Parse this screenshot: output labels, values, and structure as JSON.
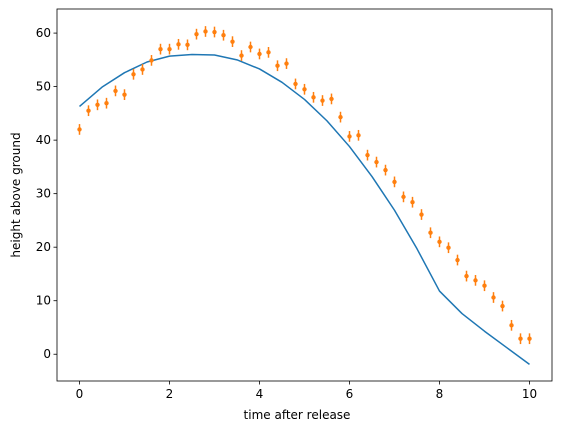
{
  "chart_data": {
    "type": "scatter",
    "title": "",
    "xlabel": "time after release",
    "ylabel": "height above ground",
    "xlim": [
      -0.5,
      10.5
    ],
    "ylim": [
      -5,
      64.5
    ],
    "xticks": [
      0,
      2,
      4,
      6,
      8,
      10
    ],
    "xtick_labels": [
      "0",
      "2",
      "4",
      "6",
      "8",
      "10"
    ],
    "yticks": [
      0,
      10,
      20,
      30,
      40,
      50,
      60
    ],
    "ytick_labels": [
      "0",
      "10",
      "20",
      "30",
      "40",
      "50",
      "60"
    ],
    "grid": false,
    "legend": "none",
    "series": [
      {
        "kind": "line",
        "color": "#1f77b4",
        "x": [
          0,
          0.5,
          1,
          1.5,
          2,
          2.5,
          3,
          3.5,
          4,
          4.5,
          5,
          5.5,
          6,
          6.5,
          7,
          7.5,
          8,
          8.5,
          9,
          9.5,
          10
        ],
        "y": [
          46.3,
          49.9,
          52.6,
          54.6,
          55.7,
          56.0,
          55.9,
          55.0,
          53.3,
          50.8,
          47.6,
          43.6,
          38.8,
          33.2,
          26.9,
          19.7,
          11.8,
          7.6,
          4.3,
          1.2,
          -1.9
        ]
      },
      {
        "kind": "errorbar",
        "color": "#ff7f0e",
        "x": [
          0,
          0.2,
          0.4,
          0.6,
          0.8,
          1.0,
          1.2,
          1.4,
          1.6,
          1.8,
          2.0,
          2.2,
          2.4,
          2.6,
          2.8,
          3.0,
          3.2,
          3.4,
          3.6,
          3.8,
          4.0,
          4.2,
          4.4,
          4.6,
          4.8,
          5.0,
          5.2,
          5.4,
          5.6,
          5.8,
          6.0,
          6.2,
          6.4,
          6.6,
          6.8,
          7.0,
          7.2,
          7.4,
          7.6,
          7.8,
          8.0,
          8.2,
          8.4,
          8.6,
          8.8,
          9.0,
          9.2,
          9.4,
          9.6,
          9.8,
          10.0
        ],
        "y": [
          42.0,
          45.5,
          46.6,
          46.9,
          49.2,
          48.5,
          52.3,
          53.2,
          54.9,
          57.0,
          57.0,
          57.9,
          57.8,
          59.8,
          60.3,
          60.2,
          59.6,
          58.4,
          55.8,
          57.4,
          56.1,
          56.4,
          53.9,
          54.3,
          50.5,
          49.5,
          48.0,
          47.4,
          47.7,
          44.3,
          40.7,
          40.9,
          37.2,
          35.9,
          34.4,
          32.2,
          29.4,
          28.4,
          26.1,
          22.7,
          21.0,
          19.9,
          17.6,
          14.6,
          13.8,
          12.8,
          10.6,
          9.0,
          5.4,
          2.9,
          2.9
        ],
        "yerr": 1.0
      }
    ]
  }
}
